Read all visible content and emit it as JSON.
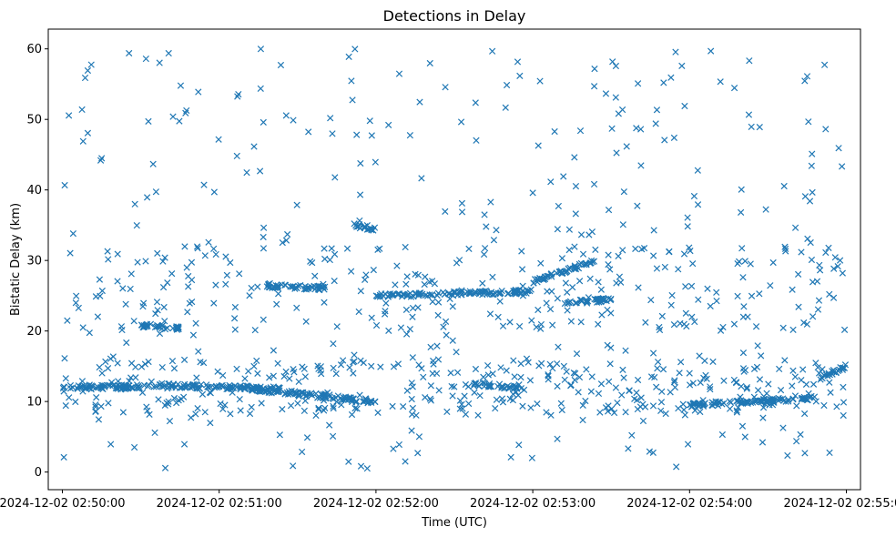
{
  "chart_data": {
    "type": "scatter",
    "title": "Detections in Delay",
    "xlabel": "Time (UTC)",
    "ylabel": "Bistatic Delay (km)",
    "x_ticks": [
      "2024-12-02 02:50:00",
      "2024-12-02 02:51:00",
      "2024-12-02 02:52:00",
      "2024-12-02 02:53:00",
      "2024-12-02 02:54:00",
      "2024-12-02 02:55:00"
    ],
    "x_tick_values_min": [
      0,
      1,
      2,
      3,
      4,
      5
    ],
    "x_units": "minutes after 2024-12-02 02:50:00",
    "xlim_min": [
      -0.09,
      5.09
    ],
    "y_ticks": [
      0,
      10,
      20,
      30,
      40,
      50,
      60
    ],
    "ylim": [
      -2.5,
      62.8
    ],
    "marker": "x",
    "color": "#1f77b4",
    "grid": false,
    "legend": "none",
    "series": [
      {
        "note": "approximate representative points (many scattered detections)",
        "tracks": [
          {
            "x": [
              0.0,
              0.6
            ],
            "y_start": 12.0,
            "y_end": 12.1
          },
          {
            "x": [
              0.6,
              1.4
            ],
            "y_start": 12.3,
            "y_end": 11.8
          },
          {
            "x": [
              1.2,
              2.0
            ],
            "y_start": 11.8,
            "y_end": 10.0
          },
          {
            "x": [
              2.0,
              3.0
            ],
            "y_start": 25.0,
            "y_end": 25.6
          },
          {
            "x": [
              3.0,
              3.4
            ],
            "y_start": 27.0,
            "y_end": 30.0
          },
          {
            "x": [
              4.0,
              4.8
            ],
            "y_start": 9.5,
            "y_end": 10.5
          },
          {
            "x": [
              4.8,
              5.0
            ],
            "y_start": 13.0,
            "y_end": 15.0
          },
          {
            "x": [
              0.5,
              0.75
            ],
            "y_start": 20.8,
            "y_end": 20.4
          },
          {
            "x": [
              1.85,
              2.0
            ],
            "y_start": 35.0,
            "y_end": 34.5
          },
          {
            "x": [
              1.3,
              1.7
            ],
            "y_start": 26.5,
            "y_end": 26.0
          },
          {
            "x": [
              2.6,
              2.9
            ],
            "y_start": 12.5,
            "y_end": 12.0
          },
          {
            "x": [
              3.2,
              3.5
            ],
            "y_start": 24.0,
            "y_end": 24.5
          }
        ],
        "x_range_min": [
          0,
          5
        ],
        "y_range": [
          0.5,
          60
        ],
        "count_estimate": 1600
      }
    ]
  }
}
